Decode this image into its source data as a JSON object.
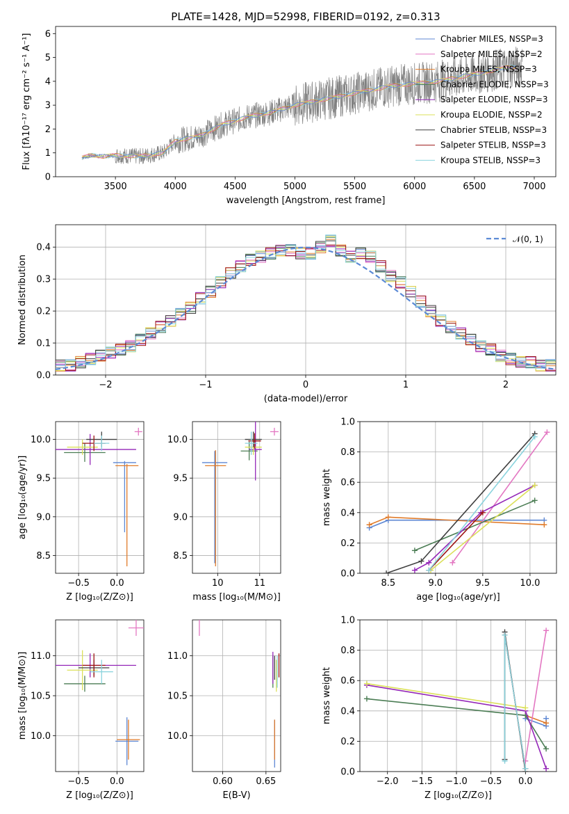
{
  "title": "PLATE=1428, MJD=52998, FIBERID=0192, z=0.313",
  "colors": {
    "chabrier_miles": "#5d87d3",
    "salpeter_miles": "#e377c2",
    "kroupa_miles": "#e07b2a",
    "chabrier_elodie": "#4b7d54",
    "salpeter_elodie": "#9427b8",
    "kroupa_elodie": "#dbe05a",
    "chabrier_stelib": "#3f3f3f",
    "salpeter_stelib": "#9c1414",
    "kroupa_stelib": "#8ad3dd",
    "gaussian": "#5b8ad6",
    "data": "#808080"
  },
  "chart_data": [
    {
      "id": "spectrum",
      "type": "line",
      "xlabel": "wavelength [Angstrom, rest frame]",
      "ylabel": "Flux [fλ10⁻¹⁷ erg cm⁻² s⁻¹ A⁻¹]",
      "xlim": [
        3000,
        7180
      ],
      "ylim": [
        0,
        6.3
      ],
      "xticks": [
        "3500",
        "4000",
        "4500",
        "5000",
        "5500",
        "6000",
        "6500",
        "7000"
      ],
      "yticks": [
        "0",
        "1",
        "2",
        "3",
        "4",
        "5",
        "6"
      ],
      "legend_position": "upper right",
      "legend": [
        "Chabrier MILES, NSSP=3",
        "Salpeter MILES, NSSP=2",
        "Kroupa MILES, NSSP=3",
        "Chabrier ELODIE, NSSP=3",
        "Salpeter ELODIE, NSSP=3",
        "Kroupa ELODIE, NSSP=2",
        "Chabrier STELIB, NSSP=3",
        "Salpeter STELIB, NSSP=3",
        "Kroupa STELIB, NSSP=3"
      ],
      "model_continuum": {
        "x": [
          3220,
          3300,
          3400,
          3500,
          3700,
          3900,
          4000,
          4200,
          4400,
          4600,
          4800,
          5000,
          5200,
          5400,
          5600,
          5800,
          6000,
          6200,
          6400,
          6600,
          6800
        ],
        "y": [
          0.8,
          0.9,
          0.85,
          0.9,
          0.85,
          1.0,
          1.5,
          1.7,
          2.2,
          2.5,
          2.7,
          3.0,
          3.2,
          3.4,
          3.6,
          3.8,
          3.9,
          4.0,
          4.2,
          4.4,
          4.6
        ]
      }
    },
    {
      "id": "residuals",
      "type": "line",
      "xlabel": "(data-model)/error",
      "ylabel": "Normed distribution",
      "xlim": [
        -2.5,
        2.5
      ],
      "ylim": [
        0,
        0.47
      ],
      "xticks": [
        "−2",
        "−1",
        "0",
        "1",
        "2"
      ],
      "yticks": [
        "0.0",
        "0.1",
        "0.2",
        "0.3",
        "0.4"
      ],
      "legend_position": "upper right",
      "legend": [
        "𝒩(0, 1)"
      ],
      "hist_bins": [
        -2.5,
        -2.4,
        -2.3,
        -2.2,
        -2.1,
        -2.0,
        -1.9,
        -1.8,
        -1.7,
        -1.6,
        -1.5,
        -1.4,
        -1.3,
        -1.2,
        -1.1,
        -1.0,
        -0.9,
        -0.8,
        -0.7,
        -0.6,
        -0.5,
        -0.4,
        -0.3,
        -0.2,
        -0.1,
        0.0,
        0.1,
        0.2,
        0.3,
        0.4,
        0.5,
        0.6,
        0.7,
        0.8,
        0.9,
        1.0,
        1.1,
        1.2,
        1.3,
        1.4,
        1.5,
        1.6,
        1.7,
        1.8,
        1.9,
        2.0,
        2.1,
        2.2,
        2.3,
        2.4,
        2.5
      ],
      "hist_values": [
        0.03,
        0.03,
        0.04,
        0.05,
        0.06,
        0.07,
        0.08,
        0.09,
        0.11,
        0.13,
        0.15,
        0.17,
        0.19,
        0.21,
        0.24,
        0.26,
        0.29,
        0.32,
        0.34,
        0.36,
        0.37,
        0.38,
        0.39,
        0.39,
        0.38,
        0.38,
        0.4,
        0.42,
        0.39,
        0.37,
        0.38,
        0.37,
        0.34,
        0.31,
        0.29,
        0.26,
        0.23,
        0.2,
        0.17,
        0.15,
        0.13,
        0.11,
        0.09,
        0.08,
        0.06,
        0.05,
        0.04,
        0.04,
        0.03,
        0.03
      ]
    },
    {
      "id": "age_vs_Z",
      "type": "scatter",
      "xlabel": "Z [log₁₀(Z/Z⊙)]",
      "ylabel": "age  [log₁₀(age/yr)]",
      "xlim": [
        -0.8,
        0.35
      ],
      "ylim": [
        8.27,
        10.23
      ],
      "xticks": [
        "−0.5",
        "0.0"
      ],
      "yticks": [
        "8.5",
        "9.0",
        "9.5",
        "10.0"
      ],
      "points": [
        {
          "model": "chabrier_miles",
          "x": 0.1,
          "y": 9.7,
          "xerr": 0.15,
          "yerr_lo": 0.9,
          "yerr_hi": 0.02
        },
        {
          "model": "salpeter_miles",
          "x": 0.28,
          "y": 10.1,
          "xerr": 0.05,
          "yerr": 0.05
        },
        {
          "model": "kroupa_miles",
          "x": 0.13,
          "y": 9.66,
          "xerr": 0.15,
          "yerr_lo": 1.3,
          "yerr_hi": 0.02
        },
        {
          "model": "chabrier_elodie",
          "x": -0.42,
          "y": 9.83,
          "xerr": 0.27,
          "yerr": 0.12
        },
        {
          "model": "salpeter_elodie",
          "x": -0.35,
          "y": 9.87,
          "xerr": 0.6,
          "yerr": 0.2
        },
        {
          "model": "kroupa_elodie",
          "x": -0.45,
          "y": 9.9,
          "xerr": 0.2,
          "yerr": 0.1
        },
        {
          "model": "chabrier_stelib",
          "x": -0.2,
          "y": 10.0,
          "xerr": 0.2,
          "yerr": 0.1
        },
        {
          "model": "salpeter_stelib",
          "x": -0.3,
          "y": 9.95,
          "xerr": 0.15,
          "yerr": 0.1
        },
        {
          "model": "kroupa_stelib",
          "x": -0.2,
          "y": 9.95,
          "xerr": 0.1,
          "yerr": 0.1
        }
      ]
    },
    {
      "id": "age_vs_mass",
      "type": "scatter",
      "xlabel": "mass [log₁₀(M/M⊙)]",
      "ylabel": "",
      "xlim": [
        9.4,
        11.5
      ],
      "ylim": [
        8.27,
        10.23
      ],
      "xticks": [
        "10",
        "11"
      ],
      "yticks": [
        "8.5",
        "9.0",
        "9.5",
        "10.0"
      ],
      "points": [
        {
          "model": "chabrier_miles",
          "x": 9.93,
          "y": 9.7,
          "xerr": 0.3,
          "yerr_lo": 1.3,
          "yerr_hi": 0.15
        },
        {
          "model": "kroupa_miles",
          "x": 9.95,
          "y": 9.66,
          "xerr": 0.25,
          "yerr_lo": 1.3,
          "yerr_hi": 0.2
        },
        {
          "model": "salpeter_miles",
          "x": 11.35,
          "y": 10.1,
          "xerr": 0.1,
          "yerr": 0.05
        },
        {
          "model": "chabrier_elodie",
          "x": 10.75,
          "y": 9.85,
          "xerr": 0.2,
          "yerr": 0.12
        },
        {
          "model": "salpeter_elodie",
          "x": 10.9,
          "y": 9.87,
          "xerr": 0.15,
          "yerr": 0.4
        },
        {
          "model": "kroupa_elodie",
          "x": 10.85,
          "y": 9.9,
          "xerr": 0.2,
          "yerr": 0.1
        },
        {
          "model": "chabrier_stelib",
          "x": 10.85,
          "y": 10.0,
          "xerr": 0.2,
          "yerr": 0.1
        },
        {
          "model": "salpeter_stelib",
          "x": 10.88,
          "y": 9.98,
          "xerr": 0.15,
          "yerr": 0.1
        },
        {
          "model": "kroupa_stelib",
          "x": 10.8,
          "y": 9.95,
          "xerr": 0.15,
          "yerr": 0.15
        }
      ]
    },
    {
      "id": "weight_vs_age",
      "type": "line",
      "xlabel": "age  [log₁₀(age/yr)]",
      "ylabel": "mass weight",
      "xlim": [
        8.2,
        10.28
      ],
      "ylim": [
        0,
        1.0
      ],
      "xticks": [
        "8.5",
        "9.0",
        "9.5",
        "10.0"
      ],
      "yticks": [
        "0.0",
        "0.2",
        "0.4",
        "0.6",
        "0.8",
        "1.0"
      ],
      "series": [
        {
          "model": "chabrier_miles",
          "x": [
            8.3,
            8.5,
            10.15
          ],
          "y": [
            0.3,
            0.35,
            0.35
          ]
        },
        {
          "model": "kroupa_miles",
          "x": [
            8.3,
            8.5,
            10.15
          ],
          "y": [
            0.32,
            0.37,
            0.32
          ]
        },
        {
          "model": "salpeter_miles",
          "x": [
            9.18,
            10.18
          ],
          "y": [
            0.07,
            0.93
          ]
        },
        {
          "model": "chabrier_elodie",
          "x": [
            8.78,
            10.05
          ],
          "y": [
            0.15,
            0.48
          ]
        },
        {
          "model": "salpeter_elodie",
          "x": [
            8.78,
            8.93,
            9.48,
            10.05
          ],
          "y": [
            0.02,
            0.07,
            0.4,
            0.58
          ]
        },
        {
          "model": "kroupa_elodie",
          "x": [
            8.95,
            10.05
          ],
          "y": [
            0.02,
            0.58
          ]
        },
        {
          "model": "chabrier_stelib",
          "x": [
            8.48,
            8.85,
            10.05
          ],
          "y": [
            0.0,
            0.08,
            0.92
          ]
        },
        {
          "model": "salpeter_stelib",
          "x": [
            8.93,
            9.5
          ],
          "y": [
            0.02,
            0.4
          ]
        },
        {
          "model": "kroupa_stelib",
          "x": [
            8.93,
            10.05
          ],
          "y": [
            0.02,
            0.9
          ]
        }
      ]
    },
    {
      "id": "mass_vs_Z",
      "type": "scatter",
      "xlabel": "Z [log₁₀(Z/Z⊙)]",
      "ylabel": "mass [log₁₀(M/M⊙)]",
      "xlim": [
        -0.8,
        0.35
      ],
      "ylim": [
        9.55,
        11.45
      ],
      "xticks": [
        "−0.5",
        "0.0"
      ],
      "yticks": [
        "10.0",
        "10.5",
        "11.0"
      ],
      "points": [
        {
          "model": "chabrier_miles",
          "x": 0.13,
          "y": 9.93,
          "xerr": 0.15,
          "yerr": 0.3
        },
        {
          "model": "kroupa_miles",
          "x": 0.15,
          "y": 9.95,
          "xerr": 0.15,
          "yerr": 0.25
        },
        {
          "model": "salpeter_miles",
          "x": 0.25,
          "y": 11.35,
          "xerr": 0.1,
          "yerr": 0.1
        },
        {
          "model": "chabrier_elodie",
          "x": -0.42,
          "y": 10.65,
          "xerr": 0.27,
          "yerr": 0.1
        },
        {
          "model": "salpeter_elodie",
          "x": -0.35,
          "y": 10.88,
          "xerr": 0.6,
          "yerr": 0.15
        },
        {
          "model": "kroupa_elodie",
          "x": -0.45,
          "y": 10.82,
          "xerr": 0.2,
          "yerr": 0.25
        },
        {
          "model": "chabrier_stelib",
          "x": -0.3,
          "y": 10.85,
          "xerr": 0.2,
          "yerr": 0.1
        },
        {
          "model": "salpeter_stelib",
          "x": -0.3,
          "y": 10.88,
          "xerr": 0.15,
          "yerr": 0.15
        },
        {
          "model": "kroupa_stelib",
          "x": -0.2,
          "y": 10.8,
          "xerr": 0.15,
          "yerr": 0.15
        }
      ]
    },
    {
      "id": "mass_vs_ebv",
      "type": "scatter",
      "xlabel": "E(B-V)",
      "ylabel": "",
      "xlim": [
        0.565,
        0.667
      ],
      "ylim": [
        9.55,
        11.45
      ],
      "xticks": [
        "0.60",
        "0.65"
      ],
      "yticks": [
        "10.0",
        "10.5",
        "11.0"
      ],
      "points": [
        {
          "model": "chabrier_miles",
          "x": 0.66,
          "y": 9.9,
          "yerr": 0.3
        },
        {
          "model": "kroupa_miles",
          "x": 0.66,
          "y": 9.95,
          "yerr": 0.25
        },
        {
          "model": "salpeter_miles",
          "x": 0.573,
          "y": 11.35,
          "yerr": 0.1
        },
        {
          "model": "chabrier_elodie",
          "x": 0.658,
          "y": 10.8,
          "yerr": 0.2
        },
        {
          "model": "salpeter_elodie",
          "x": 0.658,
          "y": 10.85,
          "yerr": 0.2
        },
        {
          "model": "kroupa_elodie",
          "x": 0.662,
          "y": 10.75,
          "yerr": 0.2
        },
        {
          "model": "chabrier_stelib",
          "x": 0.66,
          "y": 10.85,
          "yerr": 0.15
        },
        {
          "model": "salpeter_stelib",
          "x": 0.665,
          "y": 10.88,
          "yerr": 0.15
        },
        {
          "model": "kroupa_stelib",
          "x": 0.663,
          "y": 10.8,
          "yerr": 0.2
        }
      ]
    },
    {
      "id": "weight_vs_Z",
      "type": "line",
      "xlabel": "Z [log₁₀(Z/Z⊙)]",
      "ylabel": "mass weight",
      "xlim": [
        -2.4,
        0.45
      ],
      "ylim": [
        0,
        1.0
      ],
      "xticks": [
        "−2.0",
        "−1.5",
        "−1.0",
        "−0.5",
        "0.0"
      ],
      "yticks": [
        "0.0",
        "0.2",
        "0.4",
        "0.6",
        "0.8",
        "1.0"
      ],
      "series": [
        {
          "model": "chabrier_miles",
          "x": [
            0.0,
            0.3,
            0.3
          ],
          "y": [
            0.35,
            0.3,
            0.35
          ]
        },
        {
          "model": "kroupa_miles",
          "x": [
            0.0,
            0.3
          ],
          "y": [
            0.37,
            0.32
          ]
        },
        {
          "model": "salpeter_miles",
          "x": [
            0.0,
            0.3
          ],
          "y": [
            0.07,
            0.93
          ]
        },
        {
          "model": "chabrier_elodie",
          "x": [
            -2.3,
            0.0,
            0.3
          ],
          "y": [
            0.48,
            0.37,
            0.15
          ]
        },
        {
          "model": "salpeter_elodie",
          "x": [
            -2.3,
            0.0,
            0.3
          ],
          "y": [
            0.57,
            0.4,
            0.02
          ]
        },
        {
          "model": "kroupa_elodie",
          "x": [
            -2.3,
            0.0
          ],
          "y": [
            0.58,
            0.42
          ]
        },
        {
          "model": "chabrier_stelib",
          "x": [
            -0.3,
            -0.3,
            0.0
          ],
          "y": [
            0.08,
            0.92,
            0.0
          ]
        },
        {
          "model": "salpeter_stelib",
          "x": [
            -0.3,
            0.0
          ],
          "y": [
            0.9,
            0.02
          ]
        },
        {
          "model": "kroupa_stelib",
          "x": [
            -0.3,
            -0.3,
            0.0
          ],
          "y": [
            0.07,
            0.9,
            0.02
          ]
        }
      ]
    }
  ]
}
